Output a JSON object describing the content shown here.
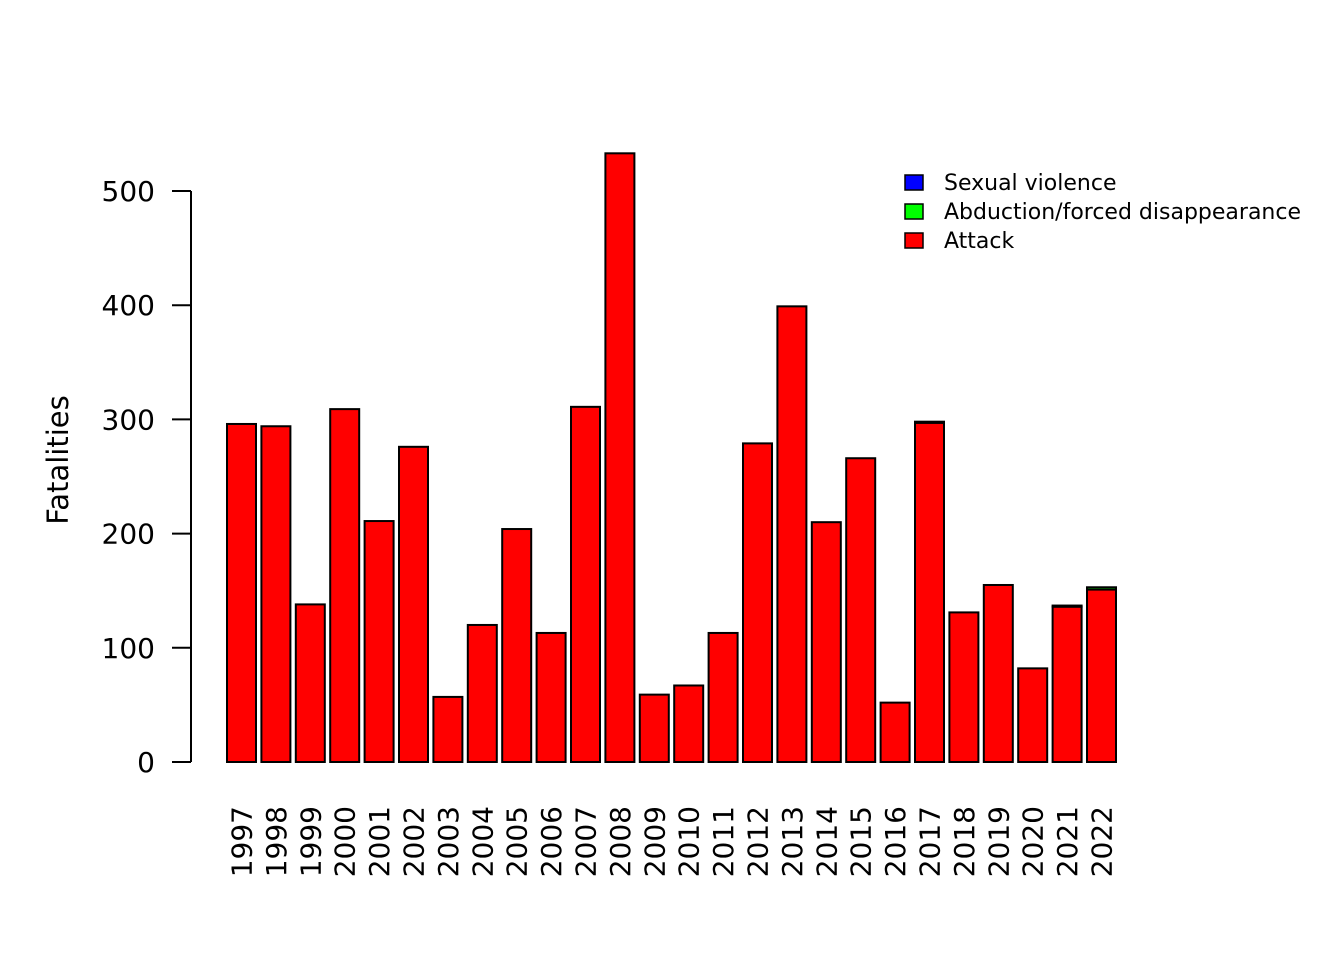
{
  "chart_data": {
    "type": "bar",
    "stacked": true,
    "ylabel": "Fatalities",
    "xlabel": "",
    "ylim": [
      0,
      540
    ],
    "yticks": [
      0,
      100,
      200,
      300,
      400,
      500
    ],
    "categories": [
      "1997",
      "1998",
      "1999",
      "2000",
      "2001",
      "2002",
      "2003",
      "2004",
      "2005",
      "2006",
      "2007",
      "2008",
      "2009",
      "2010",
      "2011",
      "2012",
      "2013",
      "2014",
      "2015",
      "2016",
      "2017",
      "2018",
      "2019",
      "2020",
      "2021",
      "2022"
    ],
    "series": [
      {
        "name": "Attack",
        "color": "#ff0000",
        "values": [
          296,
          294,
          138,
          309,
          211,
          276,
          57,
          120,
          204,
          113,
          311,
          533,
          59,
          67,
          113,
          279,
          399,
          210,
          266,
          52,
          297,
          131,
          155,
          82,
          136,
          151
        ]
      },
      {
        "name": "Abduction/forced disappearance",
        "color": "#00ff00",
        "values": [
          0,
          0,
          0,
          0,
          0,
          0,
          0,
          0,
          0,
          0,
          0,
          0,
          0,
          0,
          0,
          0,
          0,
          0,
          0,
          0,
          1,
          0,
          0,
          0,
          1,
          2
        ]
      },
      {
        "name": "Sexual violence",
        "color": "#0000ff",
        "values": [
          0,
          0,
          0,
          0,
          0,
          0,
          0,
          0,
          0,
          0,
          0,
          0,
          0,
          0,
          0,
          0,
          0,
          0,
          0,
          0,
          0,
          0,
          0,
          0,
          0,
          0
        ]
      }
    ],
    "legend": {
      "position": "top-right",
      "entries": [
        {
          "label": "Sexual violence",
          "color": "#0000ff"
        },
        {
          "label": "Abduction/forced disappearance",
          "color": "#00ff00"
        },
        {
          "label": "Attack",
          "color": "#ff0000"
        }
      ]
    },
    "grid": false
  }
}
